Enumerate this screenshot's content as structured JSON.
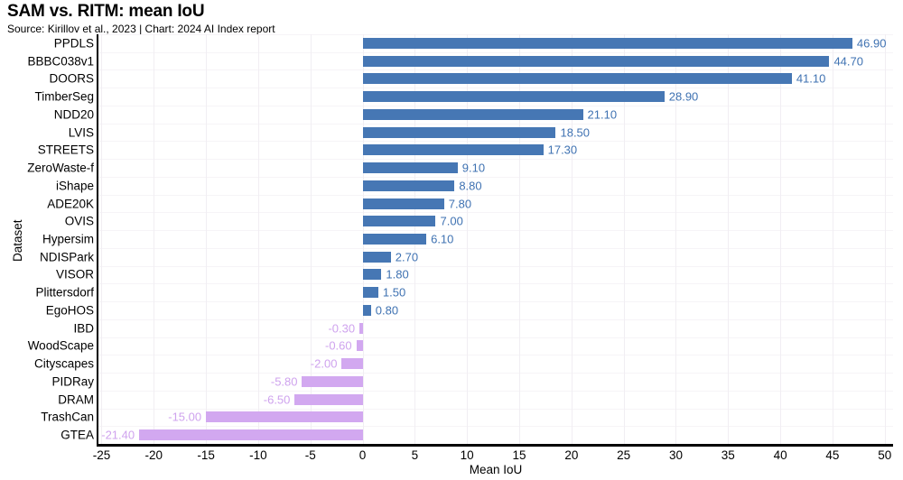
{
  "chart_data": {
    "type": "bar",
    "orientation": "horizontal",
    "title": "SAM vs. RITM: mean IoU",
    "subtitle": "Source: Kirillov et al., 2023 | Chart: 2024 AI Index report",
    "xlabel": "Mean IoU",
    "ylabel": "Dataset",
    "xlim": [
      -25.3,
      50.8
    ],
    "xticks": [
      -25,
      -20,
      -15,
      -10,
      -5,
      0,
      5,
      10,
      15,
      20,
      25,
      30,
      35,
      40,
      45,
      50
    ],
    "grid": true,
    "legend": "none",
    "categories": [
      "PPDLS",
      "BBBC038v1",
      "DOORS",
      "TimberSeg",
      "NDD20",
      "LVIS",
      "STREETS",
      "ZeroWaste-f",
      "iShape",
      "ADE20K",
      "OVIS",
      "Hypersim",
      "NDISPark",
      "VISOR",
      "Plittersdorf",
      "EgoHOS",
      "IBD",
      "WoodScape",
      "Cityscapes",
      "PIDRay",
      "DRAM",
      "TrashCan",
      "GTEA"
    ],
    "values": [
      46.9,
      44.7,
      41.1,
      28.9,
      21.1,
      18.5,
      17.3,
      9.1,
      8.8,
      7.8,
      7.0,
      6.1,
      2.7,
      1.8,
      1.5,
      0.8,
      -0.3,
      -0.6,
      -2.0,
      -5.8,
      -6.5,
      -15.0,
      -21.4
    ],
    "value_labels": [
      "46.90",
      "44.70",
      "41.10",
      "28.90",
      "21.10",
      "18.50",
      "17.30",
      "9.10",
      "8.80",
      "7.80",
      "7.00",
      "6.10",
      "2.70",
      "1.80",
      "1.50",
      "0.80",
      "-0.30",
      "-0.60",
      "-2.00",
      "-5.80",
      "-6.50",
      "-15.00",
      "-21.40"
    ],
    "colors": {
      "positive_bar": "#4677b4",
      "negative_bar": "#d2a8f0",
      "positive_label": "#3f72b2",
      "negative_label": "#cfa3ee",
      "axis": "#000000",
      "grid_vertical": "#f1eef3",
      "grid_horizontal": "#f6f4f7",
      "text": "#000000"
    }
  }
}
